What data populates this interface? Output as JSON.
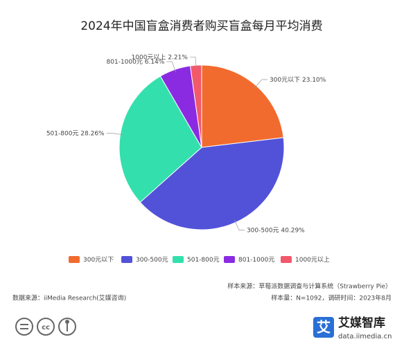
{
  "chart_data": {
    "type": "pie",
    "title": "2024年中国盲盒消费者购买盲盒每月平均消费",
    "categories": [
      "300元以下",
      "300-500元",
      "501-800元",
      "801-1000元",
      "1000元以上"
    ],
    "values": [
      23.1,
      40.29,
      28.26,
      6.14,
      2.21
    ],
    "value_labels": [
      "23.10%",
      "40.29%",
      "28.26%",
      "6.14%",
      "2.21%"
    ],
    "colors": [
      "#f26b2e",
      "#5252d9",
      "#33e0ad",
      "#8a2be2",
      "#f2596b"
    ],
    "legend": "bottom"
  },
  "footer": {
    "sample_source": "样本来源：草莓派数据调查与计算系统（Strawberry Pie）",
    "data_source": "数据来源：iiMedia Research(艾媒咨询)",
    "sample_size": "样本量：N=1092，调研时间：2023年8月",
    "logo_name": "艾媒智库",
    "logo_url": "data.iimedia.cn",
    "logo_mark": "艾"
  }
}
